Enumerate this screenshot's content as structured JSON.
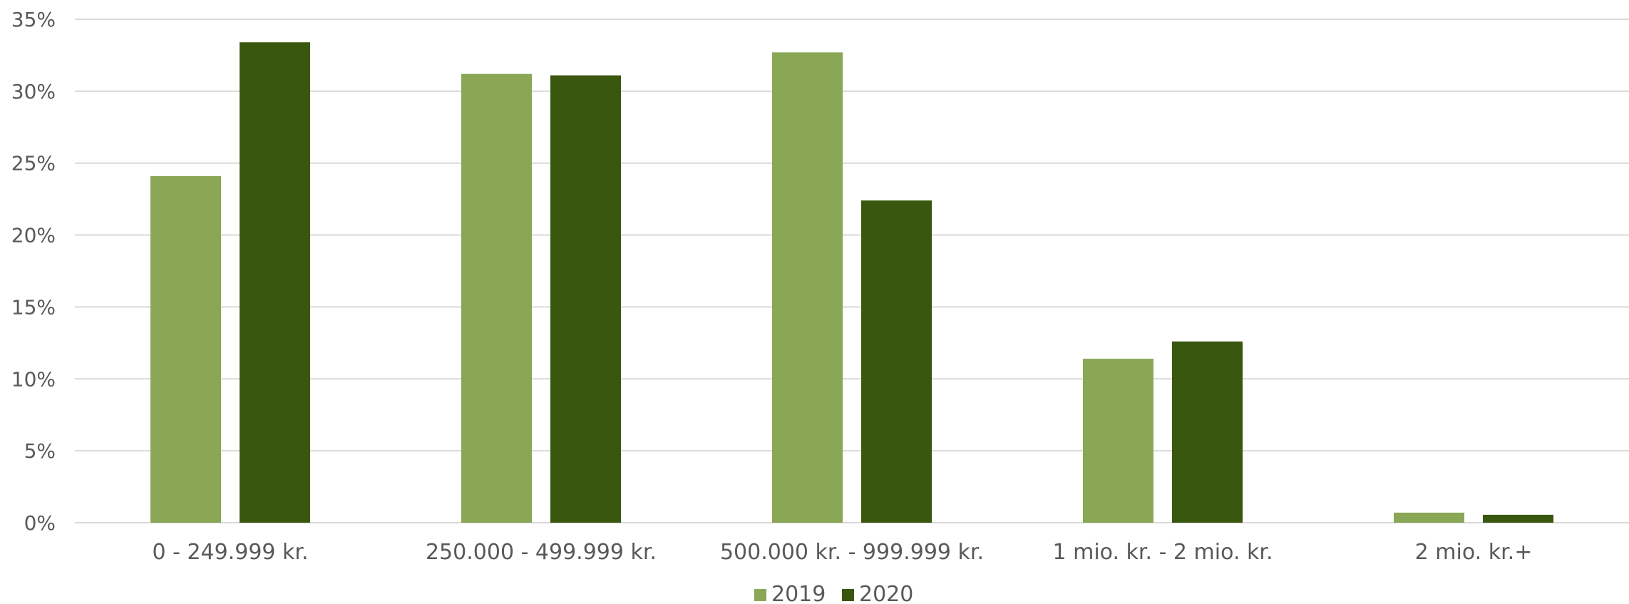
{
  "chart_data": {
    "type": "bar",
    "categories": [
      "0 - 249.999 kr.",
      "250.000 - 499.999 kr.",
      "500.000 kr. - 999.999 kr.",
      "1 mio. kr. - 2 mio. kr.",
      "2 mio. kr.+"
    ],
    "series": [
      {
        "name": "2019",
        "values": [
          24.1,
          31.2,
          32.7,
          11.4,
          0.7
        ],
        "color": "#8aa756"
      },
      {
        "name": "2020",
        "values": [
          33.4,
          31.1,
          22.4,
          12.6,
          0.55
        ],
        "color": "#3a570f"
      }
    ],
    "yticks": [
      "0%",
      "5%",
      "10%",
      "15%",
      "20%",
      "25%",
      "30%",
      "35%"
    ],
    "ylim": [
      0,
      35
    ],
    "grid": true,
    "legend": "bottom-center",
    "title": "",
    "xlabel": "",
    "ylabel": ""
  }
}
